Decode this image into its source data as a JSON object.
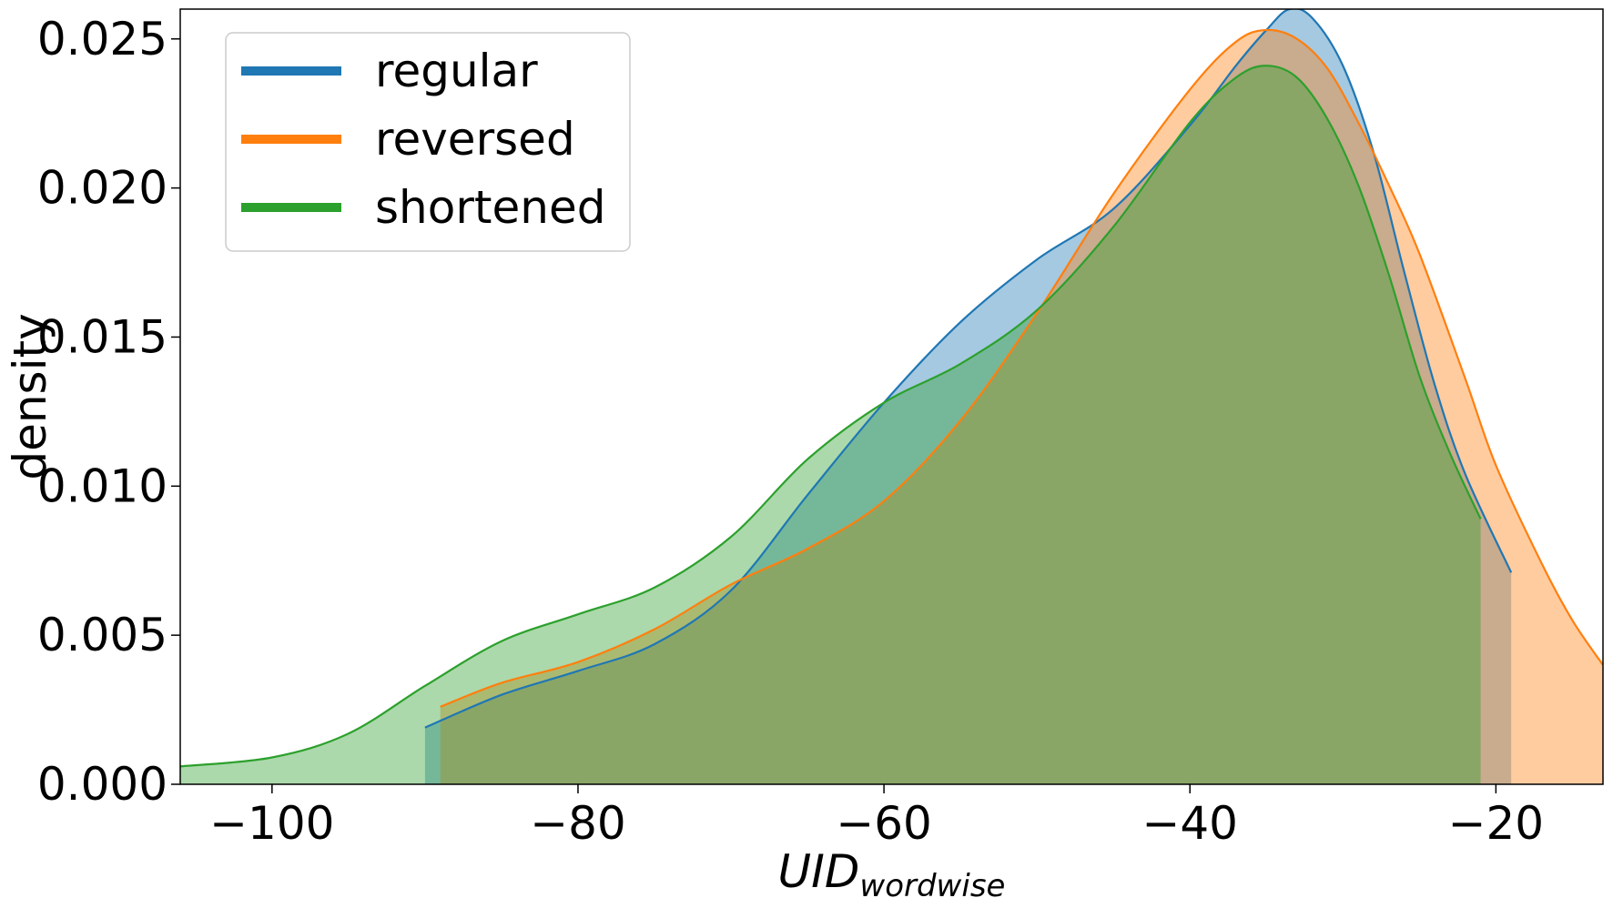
{
  "chart_data": {
    "type": "area",
    "xlabel": "UID",
    "xlabel_sub": "wordwise",
    "ylabel": "density",
    "xlim": [
      -106,
      -13
    ],
    "ylim": [
      0,
      0.026
    ],
    "xticks": [
      -100,
      -80,
      -60,
      -40,
      -20
    ],
    "xtick_labels": [
      "−100",
      "−80",
      "−60",
      "−40",
      "−20"
    ],
    "yticks": [
      0.0,
      0.005,
      0.01,
      0.015,
      0.02,
      0.025
    ],
    "ytick_labels": [
      "0.000",
      "0.005",
      "0.010",
      "0.015",
      "0.020",
      "0.025"
    ],
    "grid": false,
    "legend_position": "top-left",
    "series": [
      {
        "name": "regular",
        "color": "#1f77b4",
        "x": [
          -90,
          -85,
          -80,
          -75,
          -70,
          -65,
          -60,
          -55,
          -50,
          -45,
          -40,
          -37,
          -35,
          -33.5,
          -32,
          -30,
          -28,
          -26,
          -24,
          -22,
          -19
        ],
        "y": [
          0.0019,
          0.003,
          0.0038,
          0.0047,
          0.0065,
          0.0097,
          0.0128,
          0.0155,
          0.0176,
          0.0193,
          0.0221,
          0.0241,
          0.0253,
          0.026,
          0.0257,
          0.0241,
          0.0212,
          0.0172,
          0.0134,
          0.0104,
          0.0071
        ]
      },
      {
        "name": "reversed",
        "color": "#ff7f0e",
        "x": [
          -89,
          -85,
          -80,
          -75,
          -70,
          -65,
          -60,
          -55,
          -50,
          -45,
          -40,
          -37,
          -35,
          -33,
          -31,
          -29,
          -27,
          -25,
          -22,
          -20,
          -17,
          -15,
          -13
        ],
        "y": [
          0.0026,
          0.0034,
          0.0041,
          0.0052,
          0.0067,
          0.0079,
          0.0095,
          0.0122,
          0.0158,
          0.0198,
          0.0233,
          0.0249,
          0.0253,
          0.025,
          0.024,
          0.0222,
          0.0201,
          0.0178,
          0.0136,
          0.0107,
          0.0074,
          0.0055,
          0.004
        ]
      },
      {
        "name": "shortened",
        "color": "#2ca02c",
        "x": [
          -106,
          -100,
          -95,
          -90,
          -85,
          -80,
          -75,
          -70,
          -65,
          -60,
          -55,
          -50,
          -45,
          -40,
          -37,
          -35,
          -33,
          -31,
          -29,
          -27,
          -25,
          -23,
          -21
        ],
        "y": [
          0.0006,
          0.0009,
          0.0017,
          0.0033,
          0.0048,
          0.0057,
          0.0066,
          0.0083,
          0.0109,
          0.0128,
          0.0141,
          0.0159,
          0.0187,
          0.0222,
          0.0237,
          0.0241,
          0.0237,
          0.0223,
          0.0201,
          0.0171,
          0.0137,
          0.0111,
          0.0089
        ]
      }
    ]
  }
}
